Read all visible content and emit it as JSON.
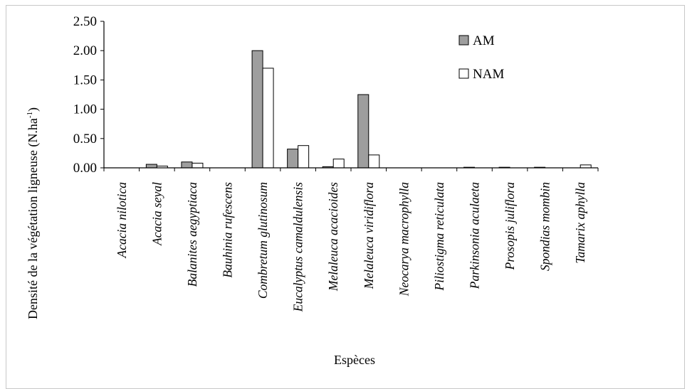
{
  "chart_data": {
    "type": "bar",
    "title": "",
    "xlabel": "Espèces",
    "ylabel": "Densité de la végétation ligneuse (N.ha",
    "ylabel_sup": "-1",
    "ylabel_end": ")",
    "ylim": [
      0,
      2.5
    ],
    "yticks": [
      0,
      0.5,
      1.0,
      1.5,
      2.0,
      2.5
    ],
    "ytick_labels": [
      "0.00",
      "0.50",
      "1.00",
      "1.50",
      "2.00",
      "2.50"
    ],
    "grid": false,
    "legend_position": "top-right",
    "categories": [
      "Acacia nilotica",
      "Acacia seyal",
      "Balanites aegyptiaca",
      "Bauhinia rufescens",
      "Combretum glutinosum",
      "Eucalyptus camaldulensis",
      "Melaleuca acacioides",
      "Melaleuca viridiflora",
      "Neocarya macrophylla",
      "Piliostigma reticulata",
      "Parkinsonia aculaeta",
      "Prosopis juliflora",
      "Spondias mombin",
      "Tamarix aphylla"
    ],
    "series": [
      {
        "name": "AM",
        "color": "#9e9e9e",
        "values": [
          0.0,
          0.06,
          0.1,
          0.0,
          2.0,
          0.32,
          0.02,
          1.25,
          0.0,
          0.0,
          0.01,
          0.01,
          0.01,
          0.0
        ]
      },
      {
        "name": "NAM",
        "color": "#ffffff",
        "values": [
          0.0,
          0.03,
          0.08,
          0.0,
          1.7,
          0.38,
          0.15,
          0.22,
          0.0,
          0.0,
          0.0,
          0.0,
          0.0,
          0.05
        ]
      }
    ]
  }
}
